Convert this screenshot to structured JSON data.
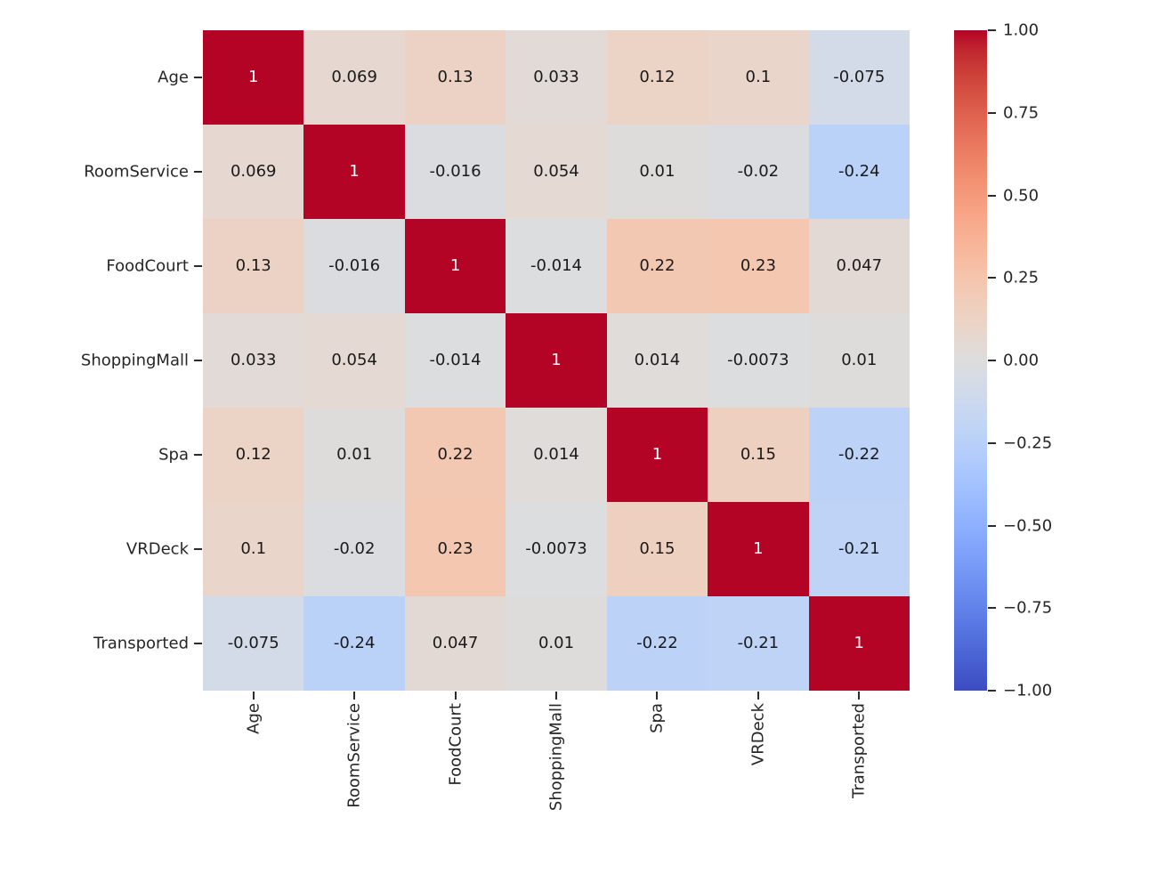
{
  "chart_data": {
    "type": "heatmap",
    "title": "",
    "xlabel": "",
    "ylabel": "",
    "categories": [
      "Age",
      "RoomService",
      "FoodCourt",
      "ShoppingMall",
      "Spa",
      "VRDeck",
      "Transported"
    ],
    "matrix": [
      [
        1,
        0.069,
        0.13,
        0.033,
        0.12,
        0.1,
        -0.075
      ],
      [
        0.069,
        1,
        -0.016,
        0.054,
        0.01,
        -0.02,
        -0.24
      ],
      [
        0.13,
        -0.016,
        1,
        -0.014,
        0.22,
        0.23,
        0.047
      ],
      [
        0.033,
        0.054,
        -0.014,
        1,
        0.014,
        -0.0073,
        0.01
      ],
      [
        0.12,
        0.01,
        0.22,
        0.014,
        1,
        0.15,
        -0.22
      ],
      [
        0.1,
        -0.02,
        0.23,
        -0.0073,
        0.15,
        1,
        -0.21
      ],
      [
        -0.075,
        -0.24,
        0.047,
        0.01,
        -0.22,
        -0.21,
        1
      ]
    ],
    "annotations": [
      [
        "1",
        "0.069",
        "0.13",
        "0.033",
        "0.12",
        "0.1",
        "-0.075"
      ],
      [
        "0.069",
        "1",
        "-0.016",
        "0.054",
        "0.01",
        "-0.02",
        "-0.24"
      ],
      [
        "0.13",
        "-0.016",
        "1",
        "-0.014",
        "0.22",
        "0.23",
        "0.047"
      ],
      [
        "0.033",
        "0.054",
        "-0.014",
        "1",
        "0.014",
        "-0.0073",
        "0.01"
      ],
      [
        "0.12",
        "0.01",
        "0.22",
        "0.014",
        "1",
        "0.15",
        "-0.22"
      ],
      [
        "0.1",
        "-0.02",
        "0.23",
        "-0.0073",
        "0.15",
        "1",
        "-0.21"
      ],
      [
        "-0.075",
        "-0.24",
        "0.047",
        "0.01",
        "-0.22",
        "-0.21",
        "1"
      ]
    ],
    "colormap": "coolwarm",
    "vmin": -1,
    "vmax": 1,
    "grid": false,
    "legend_position": "right-colorbar",
    "colorbar_tick_values": [
      1.0,
      0.75,
      0.5,
      0.25,
      0.0,
      -0.25,
      -0.5,
      -0.75,
      -1.0
    ],
    "colorbar_tick_labels": [
      "1.00",
      "0.75",
      "0.50",
      "0.25",
      "0.00",
      "−0.25",
      "−0.50",
      "−0.75",
      "−1.00"
    ]
  },
  "colors": {
    "background": "#ffffff",
    "annotation_dark": "#1a1a1a",
    "annotation_light": "#ffffff",
    "axis_text": "#262626",
    "tick_mark": "#2b2b2b",
    "colormap_max": "#b40426",
    "colormap_mid": "#dddddd",
    "colormap_min": "#3b4cc0"
  }
}
